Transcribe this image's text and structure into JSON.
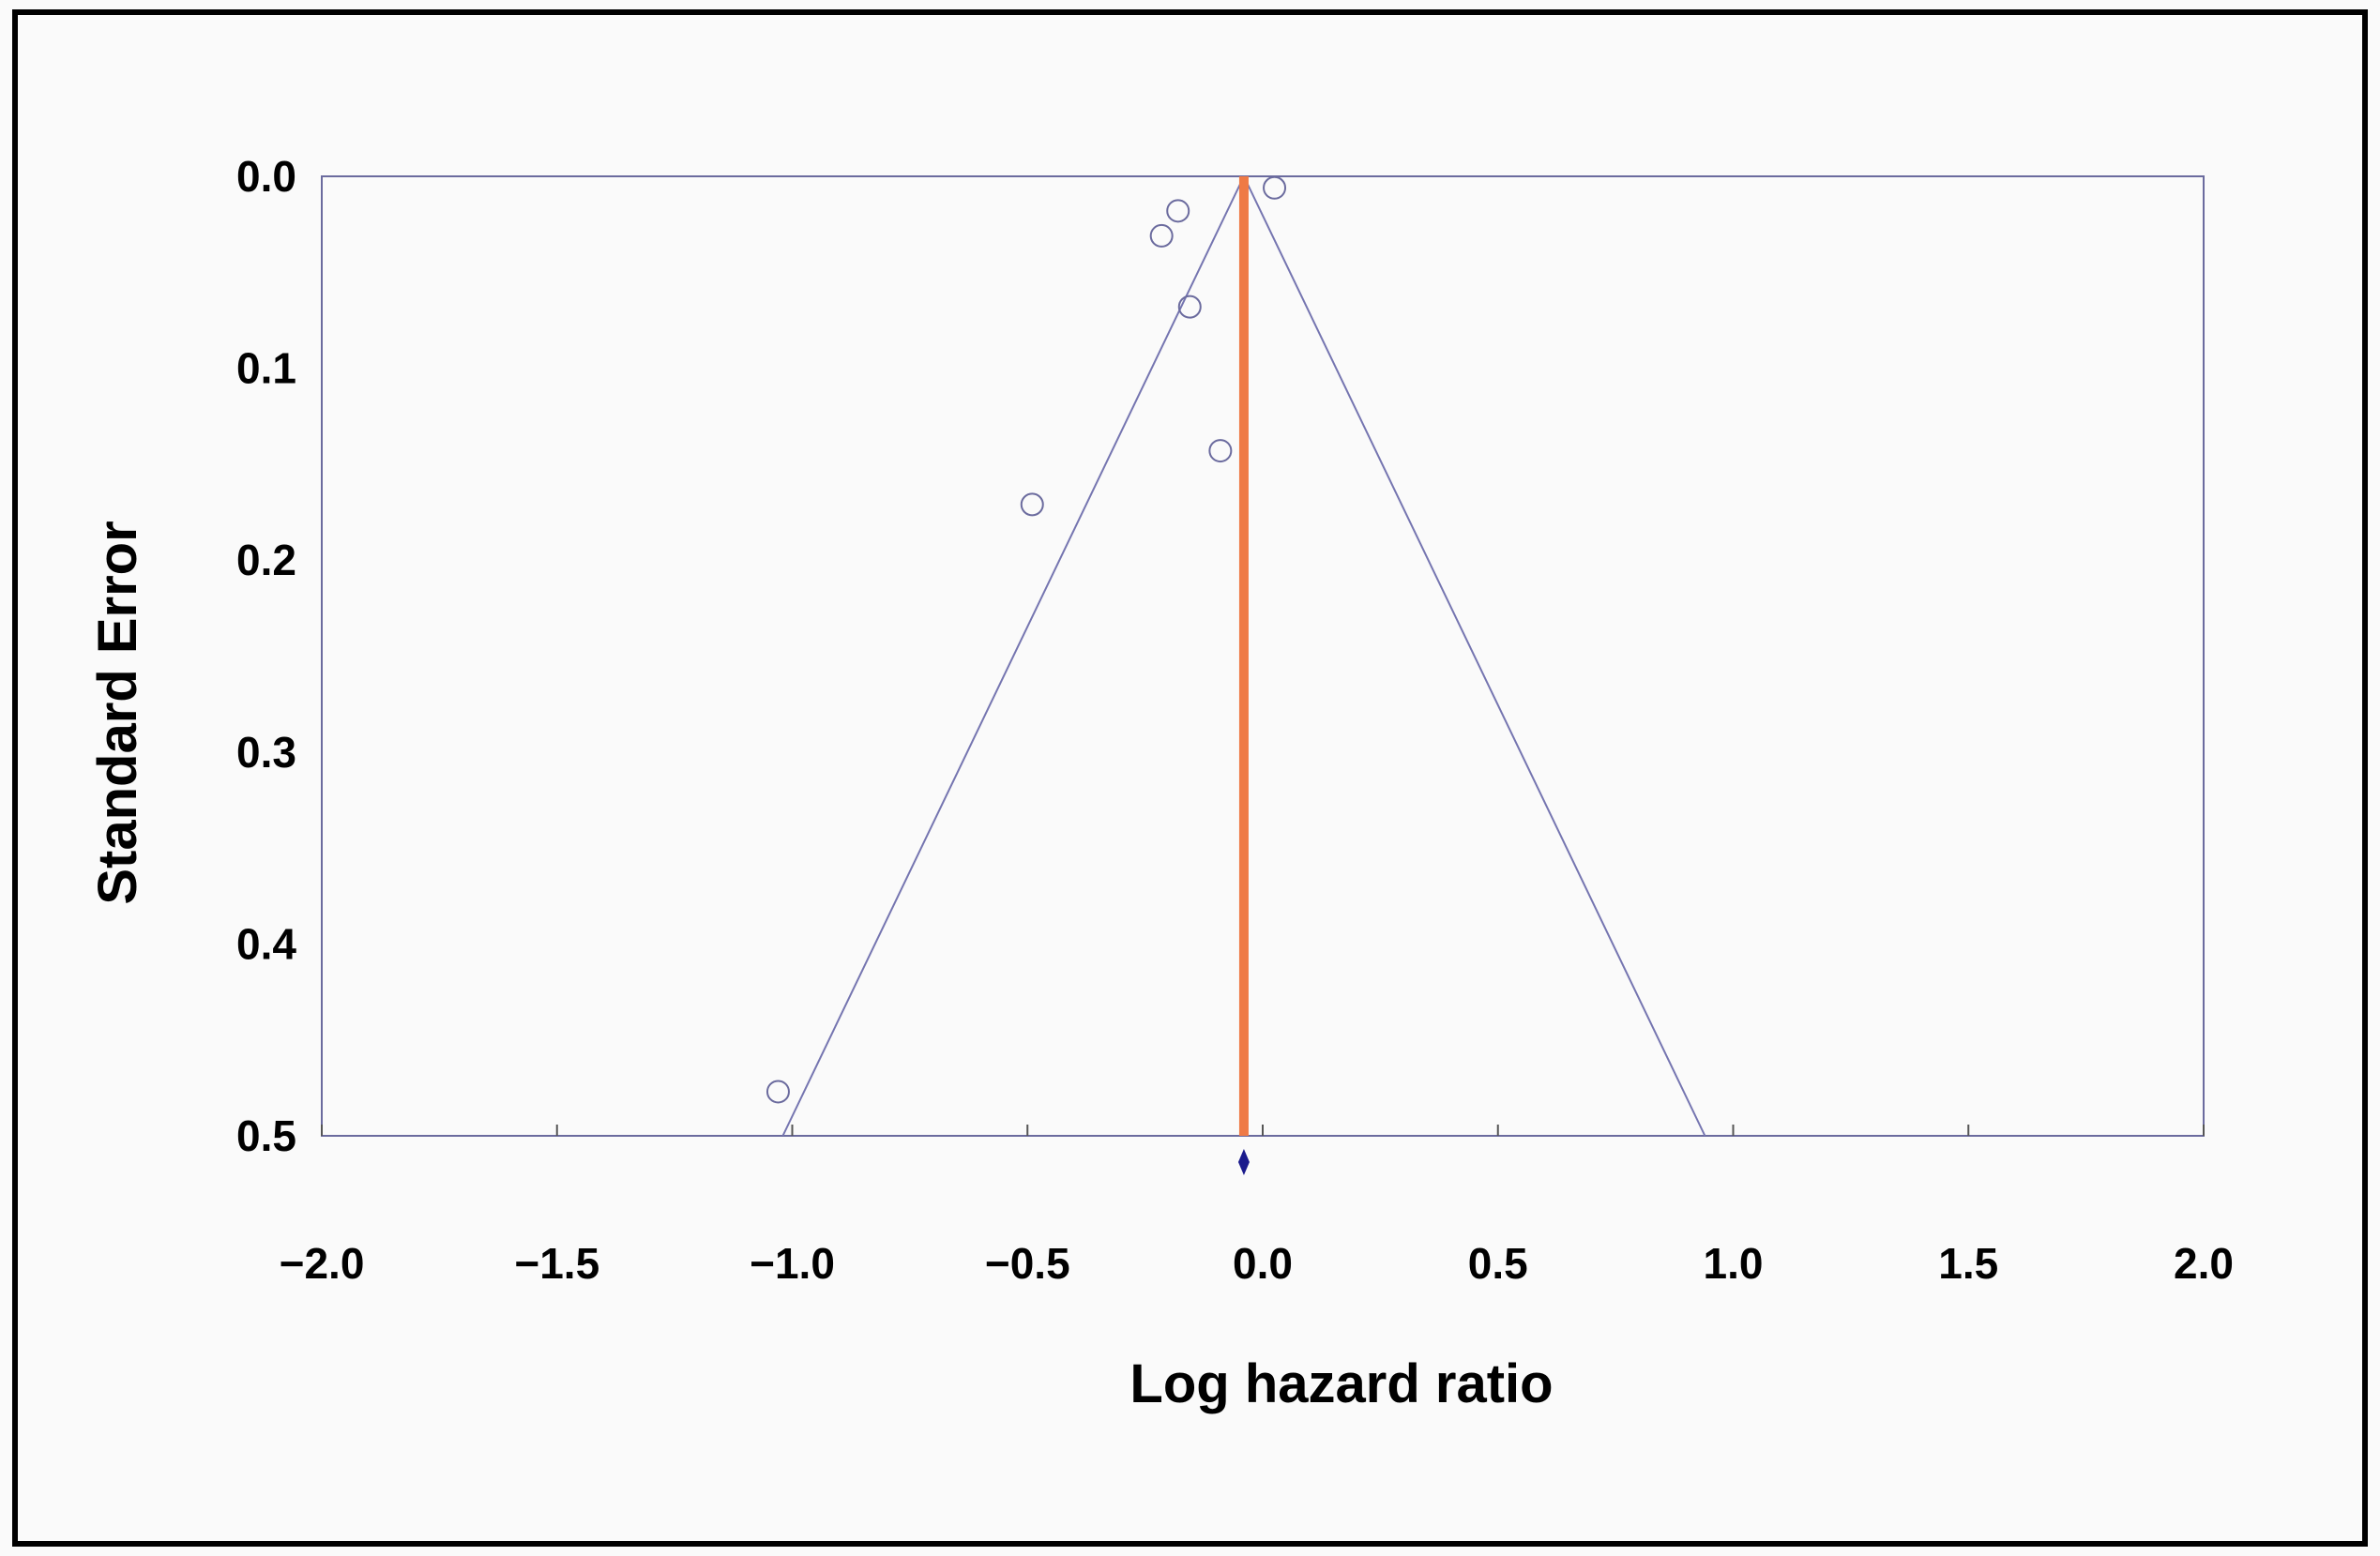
{
  "chart_data": {
    "type": "scatter",
    "subtype": "funnel-plot",
    "title": "",
    "xlabel": "Log hazard ratio",
    "ylabel": "Standard Error",
    "xlim": [
      -2.0,
      2.0
    ],
    "ylim": [
      0.0,
      0.5
    ],
    "y_inverted": true,
    "x_ticks": [
      -2.0,
      -1.5,
      -1.0,
      -0.5,
      0.0,
      0.5,
      1.0,
      1.5,
      2.0
    ],
    "x_tick_labels": [
      "−2.0",
      "−1.5",
      "−1.0",
      "−0.5",
      "0.0",
      "0.5",
      "1.0",
      "1.5",
      "2.0"
    ],
    "y_ticks": [
      0.0,
      0.1,
      0.2,
      0.3,
      0.4,
      0.5
    ],
    "y_tick_labels": [
      "0.0",
      "0.1",
      "0.2",
      "0.3",
      "0.4",
      "0.5"
    ],
    "grid": false,
    "legend": "none",
    "points": [
      {
        "x": 0.025,
        "y": 0.006
      },
      {
        "x": -0.18,
        "y": 0.018
      },
      {
        "x": -0.215,
        "y": 0.031
      },
      {
        "x": -0.155,
        "y": 0.068
      },
      {
        "x": -0.09,
        "y": 0.143
      },
      {
        "x": -0.49,
        "y": 0.171
      },
      {
        "x": -1.03,
        "y": 0.477
      }
    ],
    "pooled_estimate": -0.04,
    "pooled_marker": "diamond",
    "funnel_limits": {
      "apex": {
        "x": -0.04,
        "y": 0.0
      },
      "left_at_ymax": -1.02,
      "right_at_ymax": 0.94
    },
    "colors": {
      "background": "#fafafa",
      "frame": "#000000",
      "plot_border": "#6b6b9e",
      "points": "#6b6b9e",
      "funnel_lines": "#7575b0",
      "pooled_line": "#ef7a45",
      "pooled_diamond": "#1a1a8c"
    }
  }
}
